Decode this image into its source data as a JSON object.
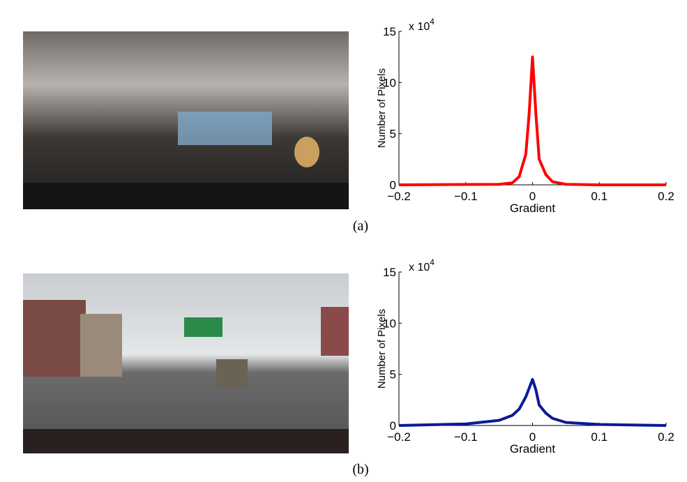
{
  "chart_data": [
    {
      "type": "line",
      "xlabel": "Gradient",
      "ylabel": "Number of Pixels",
      "y_multiplier": {
        "base": "x 10",
        "exponent": "4"
      },
      "x": [
        -0.2,
        -0.05,
        -0.03,
        -0.02,
        -0.01,
        -0.005,
        0,
        0.005,
        0.01,
        0.02,
        0.03,
        0.05,
        0.1,
        0.2
      ],
      "values": [
        0,
        0.05,
        0.2,
        0.8,
        3,
        7,
        12.5,
        7,
        2.5,
        1,
        0.3,
        0.05,
        0,
        0
      ],
      "color": "#ff0000",
      "xlim": [
        -0.2,
        0.2
      ],
      "ylim": [
        0,
        15
      ],
      "xticks": [
        {
          "value": -0.2,
          "label": "−0.2"
        },
        {
          "value": -0.1,
          "label": "−0.1"
        },
        0,
        0.1,
        0.2
      ],
      "yticks": [
        0,
        5,
        10,
        15
      ]
    },
    {
      "type": "line",
      "xlabel": "Gradient",
      "ylabel": "Number of Pixels",
      "y_multiplier": {
        "base": "x 10",
        "exponent": "4"
      },
      "x": [
        -0.2,
        -0.1,
        -0.05,
        -0.03,
        -0.02,
        -0.01,
        0,
        0.005,
        0.01,
        0.02,
        0.03,
        0.05,
        0.1,
        0.2
      ],
      "values": [
        0,
        0.15,
        0.5,
        1,
        1.6,
        2.8,
        4.5,
        3.5,
        2,
        1.2,
        0.7,
        0.3,
        0.1,
        0
      ],
      "color": "#0a1a96",
      "xlim": [
        -0.2,
        0.2
      ],
      "ylim": [
        0,
        15
      ],
      "xticks": [
        {
          "value": -0.2,
          "label": "−0.2"
        },
        {
          "value": -0.1,
          "label": "−0.1"
        },
        0,
        0.1,
        0.2
      ],
      "yticks": [
        0,
        5,
        10,
        15
      ]
    }
  ],
  "captions": [
    "(a)",
    "(b)"
  ]
}
